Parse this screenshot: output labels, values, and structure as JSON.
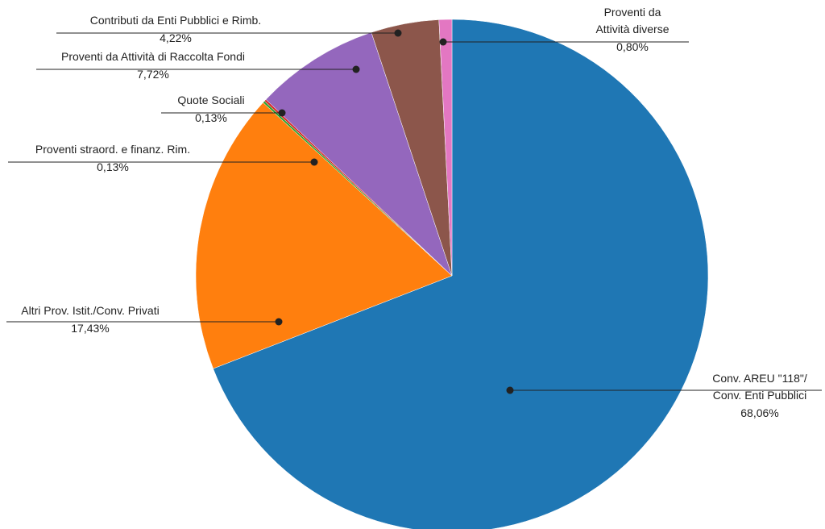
{
  "chart_data": {
    "type": "pie",
    "categories": [
      "Conv. AREU \"118\"/\nConv. Enti Pubblici",
      "Altri Prov. Istit./Conv. Privati",
      "Proventi straord. e finanz. Rim.",
      "Quote Sociali",
      "Proventi da Attività di Raccolta Fondi",
      "Contributi da Enti Pubblici e Rimb.",
      "Proventi da\nAttività diverse"
    ],
    "values": [
      68.06,
      17.43,
      0.13,
      0.13,
      7.72,
      4.22,
      0.8
    ],
    "value_labels": [
      "68,06%",
      "17,43%",
      "0,13%",
      "0,13%",
      "7,72%",
      "4,22%",
      "0,80%"
    ],
    "colors": [
      "#1f77b4",
      "#ff7f0e",
      "#2ca02c",
      "#d62728",
      "#9467bd",
      "#8c564b",
      "#e377c2"
    ]
  }
}
